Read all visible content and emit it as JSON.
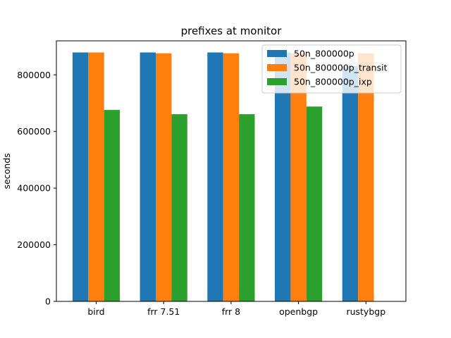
{
  "chart_data": {
    "type": "bar",
    "title": "prefixes at monitor",
    "xlabel": "",
    "ylabel": "seconds",
    "categories": [
      "bird",
      "frr 7.51",
      "frr 8",
      "openbgp",
      "rustybgp"
    ],
    "series": [
      {
        "name": "50n_800000p",
        "color": "#1f77b4",
        "values": [
          879000,
          879000,
          879000,
          879000,
          830000
        ]
      },
      {
        "name": "50n_800000p_transit",
        "color": "#ff7f0e",
        "values": [
          879000,
          876000,
          876000,
          876000,
          876000
        ]
      },
      {
        "name": "50n_800000p_ixp",
        "color": "#2ca02c",
        "values": [
          676000,
          661000,
          661000,
          688000,
          null
        ]
      }
    ],
    "ylim": [
      0,
      920000
    ],
    "yticks": [
      0,
      200000,
      400000,
      600000,
      800000
    ],
    "ytick_labels": [
      "0",
      "200000",
      "400000",
      "600000",
      "800000"
    ],
    "grid": false,
    "legend_position": "upper right"
  }
}
